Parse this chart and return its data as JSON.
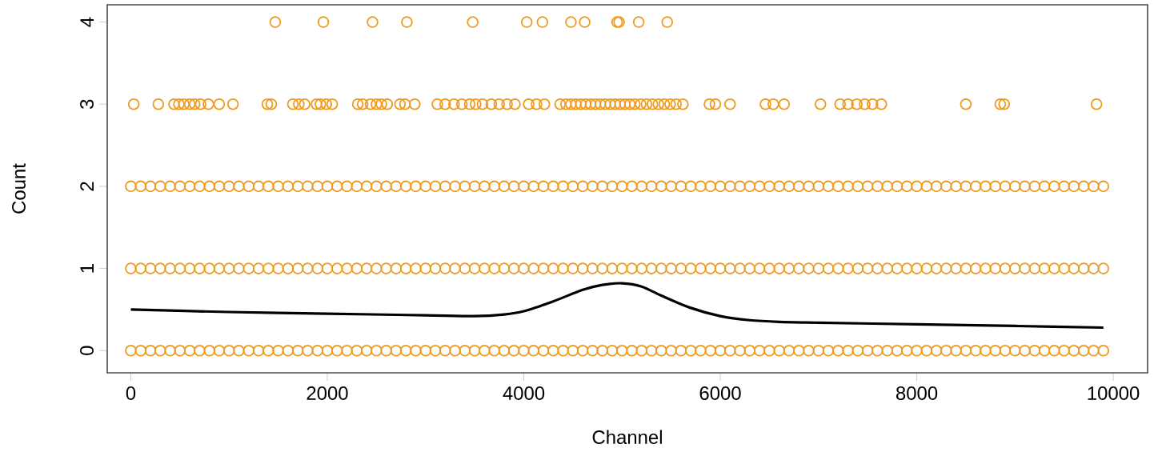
{
  "chart_data": {
    "type": "scatter",
    "xlabel": "Channel",
    "ylabel": "Count",
    "xlim": [
      -240,
      10350
    ],
    "ylim": [
      -0.27,
      4.21
    ],
    "xticks": [
      0,
      2000,
      4000,
      6000,
      8000,
      10000
    ],
    "yticks": [
      0,
      1,
      2,
      3,
      4
    ],
    "marker": "circle",
    "grid": false,
    "series": [
      {
        "color": "#ee9a1f",
        "x": [
          0,
          100,
          200,
          300,
          400,
          500,
          600,
          700,
          800,
          900,
          1000,
          1100,
          1200,
          1300,
          1400,
          1500,
          1600,
          1700,
          1800,
          1900,
          2000,
          2100,
          2200,
          2300,
          2400,
          2500,
          2600,
          2700,
          2800,
          2900,
          3000,
          3100,
          3200,
          3300,
          3400,
          3500,
          3600,
          3700,
          3800,
          3900,
          4000,
          4100,
          4200,
          4300,
          4400,
          4500,
          4600,
          4700,
          4800,
          4900,
          5000,
          5100,
          5200,
          5300,
          5400,
          5500,
          5600,
          5700,
          5800,
          5900,
          6000,
          6100,
          6200,
          6300,
          6400,
          6500,
          6600,
          6700,
          6800,
          6900,
          7000,
          7100,
          7200,
          7300,
          7400,
          7500,
          7600,
          7700,
          7800,
          7900,
          8000,
          8100,
          8200,
          8300,
          8400,
          8500,
          8600,
          8700,
          8800,
          8900,
          9000,
          9100,
          9200,
          9300,
          9400,
          9500,
          9600,
          9700,
          9800,
          9900
        ],
        "values": [
          0,
          0,
          0,
          0,
          0,
          0,
          0,
          0,
          0,
          0,
          0,
          0,
          0,
          0,
          0,
          0,
          0,
          0,
          0,
          0,
          0,
          0,
          0,
          0,
          0,
          0,
          0,
          0,
          0,
          0,
          0,
          0,
          0,
          0,
          0,
          0,
          0,
          0,
          0,
          0,
          0,
          0,
          0,
          0,
          0,
          0,
          0,
          0,
          0,
          0,
          0,
          0,
          0,
          0,
          0,
          0,
          0,
          0,
          0,
          0,
          0,
          0,
          0,
          0,
          0,
          0,
          0,
          0,
          0,
          0,
          0,
          0,
          0,
          0,
          0,
          0,
          0,
          0,
          0,
          0,
          0,
          0,
          0,
          0,
          0,
          0,
          0,
          0,
          0,
          0,
          0,
          0,
          0,
          0,
          0,
          0,
          0,
          0,
          0,
          0
        ]
      },
      {
        "color": "#ee9a1f",
        "x": [
          0,
          100,
          200,
          300,
          400,
          500,
          600,
          700,
          800,
          900,
          1000,
          1100,
          1200,
          1300,
          1400,
          1500,
          1600,
          1700,
          1800,
          1900,
          2000,
          2100,
          2200,
          2300,
          2400,
          2500,
          2600,
          2700,
          2800,
          2900,
          3000,
          3100,
          3200,
          3300,
          3400,
          3500,
          3600,
          3700,
          3800,
          3900,
          4000,
          4100,
          4200,
          4300,
          4400,
          4500,
          4600,
          4700,
          4800,
          4900,
          5000,
          5100,
          5200,
          5300,
          5400,
          5500,
          5600,
          5700,
          5800,
          5900,
          6000,
          6100,
          6200,
          6300,
          6400,
          6500,
          6600,
          6700,
          6800,
          6900,
          7000,
          7100,
          7200,
          7300,
          7400,
          7500,
          7600,
          7700,
          7800,
          7900,
          8000,
          8100,
          8200,
          8300,
          8400,
          8500,
          8600,
          8700,
          8800,
          8900,
          9000,
          9100,
          9200,
          9300,
          9400,
          9500,
          9600,
          9700,
          9800,
          9900
        ],
        "values": [
          1,
          1,
          1,
          1,
          1,
          1,
          1,
          1,
          1,
          1,
          1,
          1,
          1,
          1,
          1,
          1,
          1,
          1,
          1,
          1,
          1,
          1,
          1,
          1,
          1,
          1,
          1,
          1,
          1,
          1,
          1,
          1,
          1,
          1,
          1,
          1,
          1,
          1,
          1,
          1,
          1,
          1,
          1,
          1,
          1,
          1,
          1,
          1,
          1,
          1,
          1,
          1,
          1,
          1,
          1,
          1,
          1,
          1,
          1,
          1,
          1,
          1,
          1,
          1,
          1,
          1,
          1,
          1,
          1,
          1,
          1,
          1,
          1,
          1,
          1,
          1,
          1,
          1,
          1,
          1,
          1,
          1,
          1,
          1,
          1,
          1,
          1,
          1,
          1,
          1,
          1,
          1,
          1,
          1,
          1,
          1,
          1,
          1,
          1,
          1
        ]
      },
      {
        "color": "#ee9a1f",
        "x": [
          0,
          100,
          200,
          300,
          400,
          500,
          600,
          700,
          800,
          900,
          1000,
          1100,
          1200,
          1300,
          1400,
          1500,
          1600,
          1700,
          1800,
          1900,
          2000,
          2100,
          2200,
          2300,
          2400,
          2500,
          2600,
          2700,
          2800,
          2900,
          3000,
          3100,
          3200,
          3300,
          3400,
          3500,
          3600,
          3700,
          3800,
          3900,
          4000,
          4100,
          4200,
          4300,
          4400,
          4500,
          4600,
          4700,
          4800,
          4900,
          5000,
          5100,
          5200,
          5300,
          5400,
          5500,
          5600,
          5700,
          5800,
          5900,
          6000,
          6100,
          6200,
          6300,
          6400,
          6500,
          6600,
          6700,
          6800,
          6900,
          7000,
          7100,
          7200,
          7300,
          7400,
          7500,
          7600,
          7700,
          7800,
          7900,
          8000,
          8100,
          8200,
          8300,
          8400,
          8500,
          8600,
          8700,
          8800,
          8900,
          9000,
          9100,
          9200,
          9300,
          9400,
          9500,
          9600,
          9700,
          9800,
          9900
        ],
        "values": [
          2,
          2,
          2,
          2,
          2,
          2,
          2,
          2,
          2,
          2,
          2,
          2,
          2,
          2,
          2,
          2,
          2,
          2,
          2,
          2,
          2,
          2,
          2,
          2,
          2,
          2,
          2,
          2,
          2,
          2,
          2,
          2,
          2,
          2,
          2,
          2,
          2,
          2,
          2,
          2,
          2,
          2,
          2,
          2,
          2,
          2,
          2,
          2,
          2,
          2,
          2,
          2,
          2,
          2,
          2,
          2,
          2,
          2,
          2,
          2,
          2,
          2,
          2,
          2,
          2,
          2,
          2,
          2,
          2,
          2,
          2,
          2,
          2,
          2,
          2,
          2,
          2,
          2,
          2,
          2,
          2,
          2,
          2,
          2,
          2,
          2,
          2,
          2,
          2,
          2,
          2,
          2,
          2,
          2,
          2,
          2,
          2,
          2,
          2,
          2
        ]
      },
      {
        "color": "#ee9a1f",
        "x": [
          30,
          280,
          440,
          490,
          540,
          600,
          650,
          710,
          790,
          900,
          1040,
          1390,
          1430,
          1650,
          1710,
          1770,
          1890,
          1930,
          1990,
          2050,
          2310,
          2360,
          2440,
          2500,
          2550,
          2610,
          2740,
          2790,
          2890,
          3120,
          3200,
          3290,
          3370,
          3450,
          3510,
          3580,
          3670,
          3750,
          3830,
          3910,
          4050,
          4130,
          4210,
          4370,
          4430,
          4480,
          4530,
          4580,
          4630,
          4680,
          4730,
          4780,
          4830,
          4880,
          4930,
          4980,
          5030,
          5080,
          5130,
          5190,
          5250,
          5310,
          5370,
          5430,
          5490,
          5550,
          5620,
          5890,
          5950,
          6100,
          6460,
          6540,
          6650,
          7020,
          7220,
          7300,
          7390,
          7470,
          7550,
          7640,
          8500,
          8850,
          8890,
          9830
        ],
        "values": [
          3,
          3,
          3,
          3,
          3,
          3,
          3,
          3,
          3,
          3,
          3,
          3,
          3,
          3,
          3,
          3,
          3,
          3,
          3,
          3,
          3,
          3,
          3,
          3,
          3,
          3,
          3,
          3,
          3,
          3,
          3,
          3,
          3,
          3,
          3,
          3,
          3,
          3,
          3,
          3,
          3,
          3,
          3,
          3,
          3,
          3,
          3,
          3,
          3,
          3,
          3,
          3,
          3,
          3,
          3,
          3,
          3,
          3,
          3,
          3,
          3,
          3,
          3,
          3,
          3,
          3,
          3,
          3,
          3,
          3,
          3,
          3,
          3,
          3,
          3,
          3,
          3,
          3,
          3,
          3,
          3,
          3,
          3,
          3
        ]
      },
      {
        "color": "#ee9a1f",
        "x": [
          1470,
          1960,
          2460,
          2810,
          3480,
          4030,
          4190,
          4480,
          4620,
          4950,
          4970,
          5170,
          5460
        ],
        "values": [
          4,
          4,
          4,
          4,
          4,
          4,
          4,
          4,
          4,
          4,
          4,
          4,
          4
        ]
      },
      {
        "type": "line",
        "marker": "none",
        "line_style": "solid",
        "color": "#000000",
        "x": [
          0,
          1000,
          2000,
          3000,
          3500,
          3800,
          4000,
          4300,
          4600,
          4800,
          5000,
          5200,
          5400,
          5700,
          6000,
          6300,
          6600,
          7000,
          8000,
          9000,
          9900
        ],
        "values": [
          0.5,
          0.47,
          0.45,
          0.43,
          0.42,
          0.44,
          0.48,
          0.6,
          0.74,
          0.8,
          0.82,
          0.78,
          0.67,
          0.52,
          0.42,
          0.37,
          0.35,
          0.34,
          0.32,
          0.3,
          0.28
        ]
      }
    ]
  }
}
